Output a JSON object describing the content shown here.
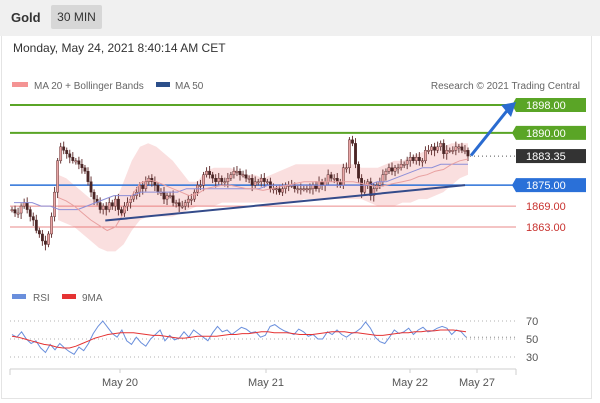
{
  "header": {
    "symbol": "Gold",
    "timeframe": "30 MIN"
  },
  "datetime": "Monday, May 24, 2021 8:40:14 AM CET",
  "legend": {
    "ma_bb": "MA 20 + Bollinger Bands",
    "ma50": "MA 50",
    "copyright": "Research © 2021 Trading Central"
  },
  "rsi_legend": {
    "rsi": "RSI",
    "ma9": "9MA"
  },
  "colors": {
    "resistance": "#5aa526",
    "pivot": "#2a70d8",
    "support": "#e25a5a",
    "last": "#333333",
    "trend": "#344b8a",
    "bb": "#fadbdb",
    "rsi": "#6a8fdc",
    "rsi_ma": "#e53333"
  },
  "chart_data": [
    {
      "type": "candlestick",
      "title": "Gold 30 MIN",
      "x_ticks": [
        "May 20",
        "May 21",
        "May 22",
        "May 27"
      ],
      "ylim": [
        1855,
        1902
      ],
      "levels": [
        {
          "label": "1898.00",
          "value": 1898.0,
          "kind": "resistance"
        },
        {
          "label": "1890.00",
          "value": 1890.0,
          "kind": "resistance"
        },
        {
          "label": "1883.35",
          "value": 1883.35,
          "kind": "last"
        },
        {
          "label": "1875.00",
          "value": 1875.0,
          "kind": "pivot"
        },
        {
          "label": "1869.00",
          "value": 1869.0,
          "kind": "support"
        },
        {
          "label": "1863.00",
          "value": 1863.0,
          "kind": "support"
        }
      ],
      "close": [
        1868,
        1867,
        1867,
        1869,
        1870,
        1868,
        1866,
        1865,
        1862,
        1861,
        1859,
        1858,
        1861,
        1866,
        1873,
        1882,
        1886,
        1885,
        1884,
        1883,
        1882,
        1882,
        1881,
        1880,
        1879,
        1876,
        1873,
        1871,
        1870,
        1868,
        1869,
        1868,
        1870,
        1869,
        1871,
        1868,
        1867,
        1869,
        1870,
        1871,
        1872,
        1873,
        1875,
        1874,
        1876,
        1877,
        1876,
        1875,
        1873,
        1873,
        1871,
        1872,
        1872,
        1870,
        1870,
        1869,
        1869,
        1870,
        1871,
        1871,
        1873,
        1875,
        1875,
        1878,
        1879,
        1878,
        1877,
        1876,
        1877,
        1876,
        1876,
        1877,
        1878,
        1879,
        1879,
        1878,
        1878,
        1877,
        1877,
        1875,
        1876,
        1876,
        1877,
        1876,
        1876,
        1874,
        1874,
        1874,
        1873,
        1874,
        1875,
        1875,
        1875,
        1874,
        1874,
        1874,
        1874,
        1874,
        1874,
        1875,
        1874,
        1876,
        1875,
        1876,
        1878,
        1877,
        1877,
        1876,
        1875,
        1880,
        1880,
        1888,
        1887,
        1881,
        1877,
        1873,
        1875,
        1876,
        1872,
        1874,
        1875,
        1876,
        1878,
        1879,
        1880,
        1879,
        1880,
        1880,
        1881,
        1881,
        1882,
        1883,
        1882,
        1883,
        1882,
        1882,
        1885,
        1885,
        1886,
        1885,
        1886,
        1887,
        1884,
        1885,
        1885,
        1885,
        1886,
        1886,
        1885,
        1885,
        1883.35
      ],
      "ma20_upper": [
        1878,
        1877,
        1875,
        1873,
        1871,
        1870,
        1868,
        1870,
        1876,
        1882,
        1886,
        1887,
        1886,
        1884,
        1882,
        1879,
        1876,
        1876,
        1879,
        1880,
        1880,
        1880,
        1879,
        1878,
        1878,
        1877,
        1878,
        1879,
        1880,
        1881,
        1881,
        1881,
        1881,
        1881,
        1881,
        1881,
        1881,
        1880,
        1880,
        1880,
        1881,
        1882,
        1882,
        1883,
        1884,
        1885,
        1886,
        1886,
        1887,
        1887,
        1887
      ],
      "ma20_lower": [
        1865,
        1864,
        1863,
        1861,
        1859,
        1857,
        1856,
        1856,
        1858,
        1862,
        1865,
        1866,
        1866,
        1866,
        1866,
        1867,
        1868,
        1869,
        1869,
        1869,
        1870,
        1870,
        1870,
        1870,
        1870,
        1870,
        1870,
        1870,
        1870,
        1870,
        1871,
        1871,
        1871,
        1871,
        1871,
        1871,
        1871,
        1871,
        1870,
        1869,
        1869,
        1869,
        1870,
        1870,
        1871,
        1871,
        1872,
        1873,
        1875,
        1877,
        1878
      ],
      "ma50": [
        1870,
        1870,
        1870,
        1869,
        1869,
        1868,
        1868,
        1868,
        1869,
        1870,
        1871,
        1872,
        1872,
        1872,
        1873,
        1873,
        1873,
        1873,
        1873,
        1874,
        1874,
        1874,
        1874,
        1874,
        1874,
        1874,
        1874,
        1874,
        1875,
        1875,
        1875,
        1875,
        1875,
        1875,
        1875,
        1875,
        1875,
        1875,
        1875,
        1875,
        1876,
        1876,
        1877,
        1878,
        1879,
        1880,
        1880,
        1881,
        1881,
        1881,
        1881
      ],
      "trendline": {
        "from": [
          0.187,
          1866.0
        ],
        "to": [
          1.0,
          1875.0
        ]
      },
      "projection": {
        "from": [
          1883.5,
          0.0
        ],
        "to": [
          1898.0,
          1.0
        ]
      }
    },
    {
      "type": "line",
      "title": "RSI",
      "y_ticks": [
        "70",
        "50",
        "30"
      ],
      "ylim": [
        20,
        80
      ],
      "series": [
        {
          "name": "RSI",
          "values": [
            55,
            52,
            58,
            50,
            45,
            48,
            40,
            35,
            44,
            38,
            45,
            40,
            36,
            33,
            41,
            37,
            45,
            56,
            64,
            70,
            63,
            56,
            52,
            60,
            48,
            44,
            52,
            46,
            42,
            50,
            55,
            60,
            48,
            54,
            49,
            51,
            58,
            52,
            60,
            56,
            52,
            48,
            57,
            64,
            58,
            60,
            55,
            59,
            63,
            61,
            57,
            58,
            52,
            54,
            64,
            66,
            62,
            59,
            57,
            55,
            61,
            58,
            53,
            55,
            50,
            50,
            58,
            55,
            60,
            55,
            52,
            56,
            58,
            62,
            69,
            62,
            52,
            47,
            45,
            52,
            60,
            56,
            58,
            62,
            55,
            60,
            63,
            58,
            59,
            62,
            64,
            62,
            55,
            60,
            58,
            52
          ]
        },
        {
          "name": "9MA",
          "values": [
            53,
            52,
            50,
            48,
            46,
            44,
            43,
            41,
            40,
            40,
            42,
            45,
            48,
            51,
            53,
            55,
            56,
            57,
            57,
            57,
            56,
            55,
            54,
            54,
            53,
            52,
            51,
            51,
            52,
            53,
            53,
            53,
            53,
            54,
            55,
            55,
            56,
            56,
            57,
            58,
            58,
            57,
            57,
            57,
            56,
            55,
            55,
            55,
            56,
            57,
            58,
            58,
            58,
            57,
            57,
            56,
            55,
            54,
            54,
            55,
            56,
            57,
            57,
            58,
            58,
            59,
            59,
            60,
            60,
            60,
            59,
            58
          ]
        }
      ]
    }
  ]
}
